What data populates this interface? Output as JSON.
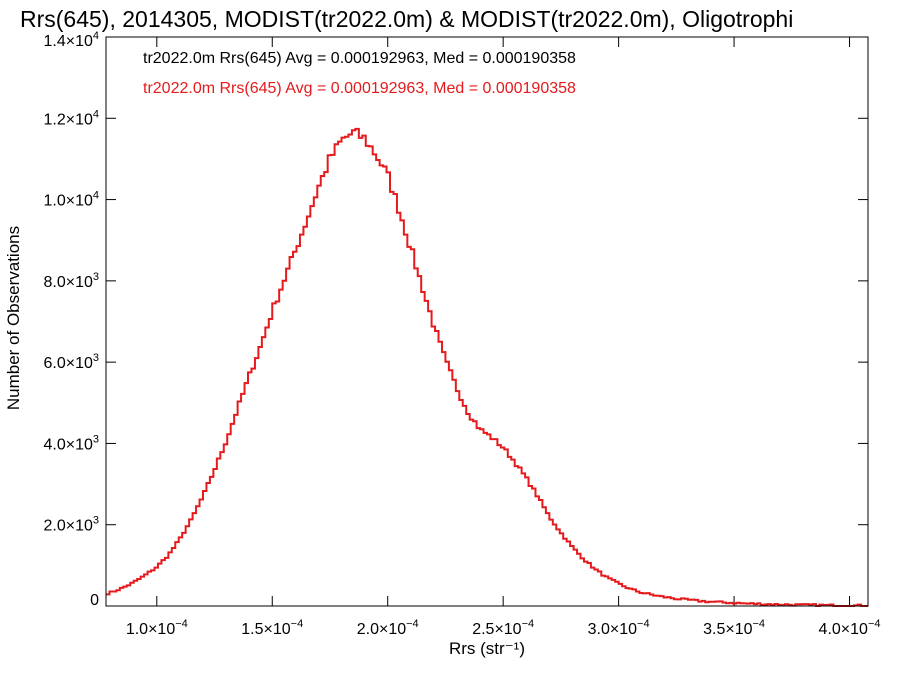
{
  "chart_data": {
    "type": "line",
    "title": "Rrs(645), 2014305, MODIST(tr2022.0m) & MODIST(tr2022.0m), Oligotrophi",
    "xlabel": "Rrs (str⁻¹)",
    "ylabel": "Number of Observations",
    "xlim": [
      7.8e-05,
      0.000408
    ],
    "ylim": [
      0,
      14000
    ],
    "x_ticks": [
      {
        "value": 0.0001,
        "mantissa": "1.0",
        "exp": "−4"
      },
      {
        "value": 0.00015,
        "mantissa": "1.5",
        "exp": "−4"
      },
      {
        "value": 0.0002,
        "mantissa": "2.0",
        "exp": "−4"
      },
      {
        "value": 0.00025,
        "mantissa": "2.5",
        "exp": "−4"
      },
      {
        "value": 0.0003,
        "mantissa": "3.0",
        "exp": "−4"
      },
      {
        "value": 0.00035,
        "mantissa": "3.5",
        "exp": "−4"
      },
      {
        "value": 0.0004,
        "mantissa": "4.0",
        "exp": "−4"
      }
    ],
    "y_ticks": [
      {
        "value": 0,
        "mantissa": "0",
        "exp": ""
      },
      {
        "value": 2000,
        "mantissa": "2.0",
        "exp": "3"
      },
      {
        "value": 4000,
        "mantissa": "4.0",
        "exp": "3"
      },
      {
        "value": 6000,
        "mantissa": "6.0",
        "exp": "3"
      },
      {
        "value": 8000,
        "mantissa": "8.0",
        "exp": "3"
      },
      {
        "value": 10000,
        "mantissa": "1.0",
        "exp": "4"
      },
      {
        "value": 12000,
        "mantissa": "1.2",
        "exp": "4"
      },
      {
        "value": 14000,
        "mantissa": "1.4",
        "exp": "4"
      }
    ],
    "annotations": [
      {
        "text": "tr2022.0m Rrs(645) Avg = 0.000192963, Med = 0.000190358",
        "color": "#000000"
      },
      {
        "text": "tr2022.0m Rrs(645) Avg = 0.000192963, Med = 0.000190358",
        "color": "#e41a1c"
      }
    ],
    "series": [
      {
        "color": "#e41a1c",
        "style": "step",
        "points": [
          [
            7.8e-05,
            300
          ],
          [
            8e-05,
            330
          ],
          [
            8.5e-05,
            440
          ],
          [
            9e-05,
            580
          ],
          [
            9.5e-05,
            760
          ],
          [
            0.0001,
            960
          ],
          [
            0.000105,
            1250
          ],
          [
            0.00011,
            1650
          ],
          [
            0.000115,
            2130
          ],
          [
            0.00012,
            2700
          ],
          [
            0.000125,
            3350
          ],
          [
            0.00013,
            4050
          ],
          [
            0.000135,
            4850
          ],
          [
            0.00014,
            5650
          ],
          [
            0.000145,
            6400
          ],
          [
            0.00015,
            7250
          ],
          [
            0.000155,
            8000
          ],
          [
            0.00016,
            8750
          ],
          [
            0.000165,
            9500
          ],
          [
            0.00017,
            10300
          ],
          [
            0.000175,
            11000
          ],
          [
            0.00018,
            11450
          ],
          [
            0.000185,
            11650
          ],
          [
            0.00019,
            11500
          ],
          [
            0.000195,
            11100
          ],
          [
            0.0002,
            10600
          ],
          [
            0.000205,
            9750
          ],
          [
            0.00021,
            8800
          ],
          [
            0.000215,
            7850
          ],
          [
            0.00022,
            6900
          ],
          [
            0.000225,
            6050
          ],
          [
            0.00023,
            5350
          ],
          [
            0.000235,
            4750
          ],
          [
            0.00024,
            4350
          ],
          [
            0.000245,
            4150
          ],
          [
            0.00025,
            3900
          ],
          [
            0.000255,
            3550
          ],
          [
            0.00026,
            3150
          ],
          [
            0.000265,
            2700
          ],
          [
            0.00027,
            2200
          ],
          [
            0.000275,
            1800
          ],
          [
            0.00028,
            1450
          ],
          [
            0.000285,
            1150
          ],
          [
            0.00029,
            900
          ],
          [
            0.000295,
            700
          ],
          [
            0.0003,
            550
          ],
          [
            0.000305,
            420
          ],
          [
            0.00031,
            330
          ],
          [
            0.000315,
            270
          ],
          [
            0.00032,
            220
          ],
          [
            0.000325,
            180
          ],
          [
            0.00033,
            150
          ],
          [
            0.000335,
            125
          ],
          [
            0.00034,
            105
          ],
          [
            0.000345,
            90
          ],
          [
            0.00035,
            75
          ],
          [
            0.000355,
            62
          ],
          [
            0.00036,
            52
          ],
          [
            0.000365,
            44
          ],
          [
            0.00037,
            37
          ],
          [
            0.000375,
            31
          ],
          [
            0.00038,
            26
          ],
          [
            0.000385,
            22
          ],
          [
            0.00039,
            18
          ],
          [
            0.000395,
            15
          ],
          [
            0.0004,
            12
          ],
          [
            0.000408,
            10
          ]
        ]
      }
    ]
  }
}
